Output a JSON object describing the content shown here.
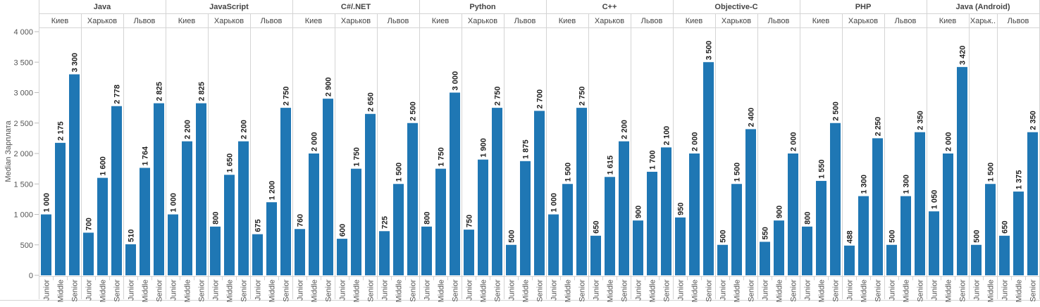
{
  "chart_data": {
    "type": "bar",
    "title": "",
    "ylabel": "Median Зарплата",
    "xlabel": "",
    "ylim": [
      0,
      4000
    ],
    "yticks": [
      0,
      500,
      1000,
      1500,
      2000,
      2500,
      3000,
      3500,
      4000
    ],
    "grid": false,
    "bar_color": "#1f77b4",
    "groups": [
      {
        "language": "Java",
        "cities": [
          {
            "city": "Киев",
            "levels": [
              "Junior",
              "Middle",
              "Senior"
            ],
            "values": [
              1000,
              2175,
              3300
            ]
          },
          {
            "city": "Харьков",
            "levels": [
              "Junior",
              "Middle",
              "Senior"
            ],
            "values": [
              700,
              1600,
              2778
            ]
          },
          {
            "city": "Львов",
            "levels": [
              "Junior",
              "Middle",
              "Senior"
            ],
            "values": [
              510,
              1764,
              2825
            ]
          }
        ]
      },
      {
        "language": "JavaScript",
        "cities": [
          {
            "city": "Киев",
            "levels": [
              "Junior",
              "Middle",
              "Senior"
            ],
            "values": [
              1000,
              2200,
              2825
            ]
          },
          {
            "city": "Харьков",
            "levels": [
              "Junior",
              "Middle",
              "Senior"
            ],
            "values": [
              800,
              1650,
              2200
            ]
          },
          {
            "city": "Львов",
            "levels": [
              "Junior",
              "Middle",
              "Senior"
            ],
            "values": [
              675,
              1200,
              2750
            ]
          }
        ]
      },
      {
        "language": "C#/.NET",
        "cities": [
          {
            "city": "Киев",
            "levels": [
              "Junior",
              "Middle",
              "Senior"
            ],
            "values": [
              760,
              2000,
              2900
            ]
          },
          {
            "city": "Харьков",
            "levels": [
              "Junior",
              "Middle",
              "Senior"
            ],
            "values": [
              600,
              1750,
              2650
            ]
          },
          {
            "city": "Львов",
            "levels": [
              "Junior",
              "Middle",
              "Senior"
            ],
            "values": [
              725,
              1500,
              2500
            ]
          }
        ]
      },
      {
        "language": "Python",
        "cities": [
          {
            "city": "Киев",
            "levels": [
              "Junior",
              "Middle",
              "Senior"
            ],
            "values": [
              800,
              1750,
              3000
            ]
          },
          {
            "city": "Харьков",
            "levels": [
              "Junior",
              "Middle",
              "Senior"
            ],
            "values": [
              750,
              1900,
              2750
            ]
          },
          {
            "city": "Львов",
            "levels": [
              "Junior",
              "Middle",
              "Senior"
            ],
            "values": [
              500,
              1875,
              2700
            ]
          }
        ]
      },
      {
        "language": "C++",
        "cities": [
          {
            "city": "Киев",
            "levels": [
              "Junior",
              "Middle",
              "Senior"
            ],
            "values": [
              1000,
              1500,
              2750
            ]
          },
          {
            "city": "Харьков",
            "levels": [
              "Junior",
              "Middle",
              "Senior"
            ],
            "values": [
              650,
              1615,
              2200
            ]
          },
          {
            "city": "Львов",
            "levels": [
              "Junior",
              "Middle",
              "Senior"
            ],
            "values": [
              900,
              1700,
              2100
            ]
          }
        ]
      },
      {
        "language": "Objective-C",
        "cities": [
          {
            "city": "Киев",
            "levels": [
              "Junior",
              "Middle",
              "Senior"
            ],
            "values": [
              950,
              2000,
              3500
            ]
          },
          {
            "city": "Харьков",
            "levels": [
              "Junior",
              "Middle",
              "Senior"
            ],
            "values": [
              500,
              1500,
              2400
            ]
          },
          {
            "city": "Львов",
            "levels": [
              "Junior",
              "Middle",
              "Senior"
            ],
            "values": [
              550,
              900,
              2000
            ]
          }
        ]
      },
      {
        "language": "PHP",
        "cities": [
          {
            "city": "Киев",
            "levels": [
              "Junior",
              "Middle",
              "Senior"
            ],
            "values": [
              800,
              1550,
              2500
            ]
          },
          {
            "city": "Харьков",
            "levels": [
              "Junior",
              "Middle",
              "Senior"
            ],
            "values": [
              488,
              1300,
              2250
            ]
          },
          {
            "city": "Львов",
            "levels": [
              "Junior",
              "Middle",
              "Senior"
            ],
            "values": [
              500,
              1300,
              2350
            ]
          }
        ]
      },
      {
        "language": "Java (Android)",
        "cities": [
          {
            "city": "Киев",
            "levels": [
              "Junior",
              "Middle",
              "Senior"
            ],
            "values": [
              1050,
              2000,
              3420
            ]
          },
          {
            "city": "Харьк..",
            "levels": [
              "Junior",
              "Middle"
            ],
            "values": [
              500,
              1500
            ]
          },
          {
            "city": "Львов",
            "levels": [
              "Junior",
              "Middle",
              "Senior"
            ],
            "values": [
              650,
              1375,
              2350
            ]
          }
        ]
      }
    ]
  }
}
